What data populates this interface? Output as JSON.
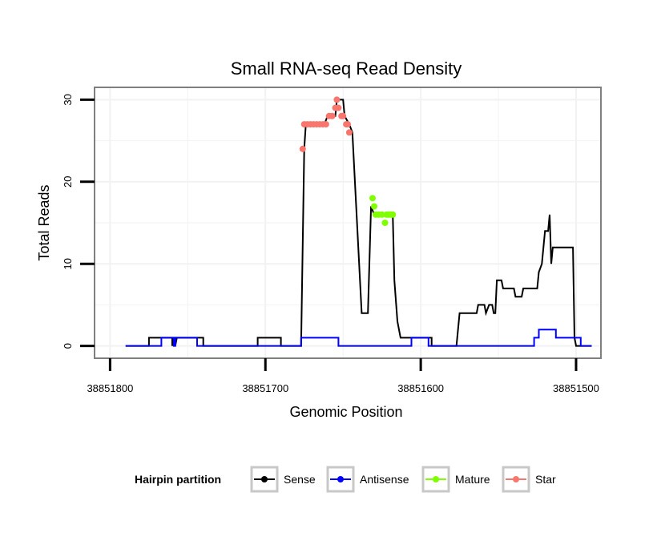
{
  "chart_data": {
    "type": "line",
    "title": "Small RNA-seq Read Density",
    "xlabel": "Genomic Position",
    "ylabel": "Total Reads",
    "xlim": [
      38851810,
      38851484
    ],
    "ylim": [
      -1.5,
      31.5
    ],
    "x_reversed": true,
    "x_ticks": [
      38851800,
      38851700,
      38851600,
      38851500
    ],
    "x_tick_labels": [
      "38851800",
      "38851700",
      "38851600",
      "38851500"
    ],
    "y_ticks": [
      0,
      10,
      20,
      30
    ],
    "y_tick_labels": [
      "0",
      "10",
      "20",
      "30"
    ],
    "grid": true,
    "legend": {
      "title": "Hairpin partition",
      "placement": "bottom",
      "entries": [
        {
          "label": "Sense",
          "color": "#000000"
        },
        {
          "label": "Antisense",
          "color": "#0000ff"
        },
        {
          "label": "Mature",
          "color": "#7fff00"
        },
        {
          "label": "Star",
          "color": "#f8766d"
        }
      ]
    },
    "series": [
      {
        "name": "Sense",
        "color": "#000000",
        "points": [
          [
            38851790,
            0
          ],
          [
            38851775,
            0
          ],
          [
            38851775,
            1
          ],
          [
            38851760,
            1
          ],
          [
            38851760,
            0
          ],
          [
            38851759,
            1
          ],
          [
            38851758,
            1
          ],
          [
            38851758,
            0
          ],
          [
            38851757,
            1
          ],
          [
            38851740,
            1
          ],
          [
            38851740,
            0
          ],
          [
            38851705,
            0
          ],
          [
            38851705,
            1
          ],
          [
            38851690,
            1
          ],
          [
            38851690,
            0
          ],
          [
            38851677,
            0
          ],
          [
            38851675,
            24
          ],
          [
            38851674,
            27
          ],
          [
            38851662,
            27
          ],
          [
            38851660,
            28
          ],
          [
            38851655,
            28
          ],
          [
            38851654,
            30
          ],
          [
            38851650,
            30
          ],
          [
            38851649,
            28
          ],
          [
            38851646,
            27
          ],
          [
            38851644,
            26
          ],
          [
            38851638,
            4
          ],
          [
            38851634,
            4
          ],
          [
            38851632,
            17
          ],
          [
            38851630,
            16
          ],
          [
            38851618,
            16
          ],
          [
            38851617,
            8
          ],
          [
            38851615,
            3
          ],
          [
            38851613,
            1
          ],
          [
            38851593,
            1
          ],
          [
            38851593,
            0
          ],
          [
            38851577,
            0
          ],
          [
            38851575,
            4
          ],
          [
            38851564,
            4
          ],
          [
            38851563,
            5
          ],
          [
            38851559,
            5
          ],
          [
            38851558,
            4
          ],
          [
            38851556,
            5
          ],
          [
            38851554,
            5
          ],
          [
            38851553,
            4
          ],
          [
            38851552,
            4
          ],
          [
            38851551,
            8
          ],
          [
            38851548,
            8
          ],
          [
            38851547,
            7
          ],
          [
            38851540,
            7
          ],
          [
            38851539,
            6
          ],
          [
            38851535,
            6
          ],
          [
            38851534,
            7
          ],
          [
            38851525,
            7
          ],
          [
            38851524,
            9
          ],
          [
            38851522,
            10
          ],
          [
            38851520,
            14
          ],
          [
            38851518,
            14
          ],
          [
            38851517,
            16
          ],
          [
            38851516,
            10
          ],
          [
            38851515,
            12
          ],
          [
            38851502,
            12
          ],
          [
            38851501,
            1
          ],
          [
            38851500,
            0
          ],
          [
            38851490,
            0
          ]
        ]
      },
      {
        "name": "Antisense",
        "color": "#0000ff",
        "points": [
          [
            38851790,
            0
          ],
          [
            38851767,
            0
          ],
          [
            38851767,
            1
          ],
          [
            38851759,
            1
          ],
          [
            38851759,
            0
          ],
          [
            38851758,
            0
          ],
          [
            38851758,
            1
          ],
          [
            38851744,
            1
          ],
          [
            38851744,
            0
          ],
          [
            38851677,
            0
          ],
          [
            38851677,
            1
          ],
          [
            38851653,
            1
          ],
          [
            38851653,
            0
          ],
          [
            38851606,
            0
          ],
          [
            38851606,
            1
          ],
          [
            38851595,
            1
          ],
          [
            38851595,
            0
          ],
          [
            38851527,
            0
          ],
          [
            38851527,
            1
          ],
          [
            38851524,
            1
          ],
          [
            38851524,
            2
          ],
          [
            38851513,
            2
          ],
          [
            38851513,
            1
          ],
          [
            38851497,
            1
          ],
          [
            38851497,
            0
          ],
          [
            38851490,
            0
          ]
        ]
      },
      {
        "name": "Mature",
        "color": "#7fff00",
        "markers_only": true,
        "points": [
          [
            38851631,
            18
          ],
          [
            38851630,
            17
          ],
          [
            38851629,
            16
          ],
          [
            38851627,
            16
          ],
          [
            38851625,
            16
          ],
          [
            38851623,
            15
          ],
          [
            38851622,
            16
          ],
          [
            38851621,
            16
          ],
          [
            38851620,
            16
          ],
          [
            38851619,
            16
          ],
          [
            38851618,
            16
          ]
        ]
      },
      {
        "name": "Star",
        "color": "#f8766d",
        "markers_only": true,
        "points": [
          [
            38851676,
            24
          ],
          [
            38851675,
            27
          ],
          [
            38851673,
            27
          ],
          [
            38851671,
            27
          ],
          [
            38851669,
            27
          ],
          [
            38851667,
            27
          ],
          [
            38851665,
            27
          ],
          [
            38851663,
            27
          ],
          [
            38851661,
            27
          ],
          [
            38851659,
            28
          ],
          [
            38851657,
            28
          ],
          [
            38851655,
            29
          ],
          [
            38851654,
            30
          ],
          [
            38851653,
            29
          ],
          [
            38851651,
            28
          ],
          [
            38851650,
            28
          ],
          [
            38851648,
            27
          ],
          [
            38851647,
            27
          ],
          [
            38851646,
            26
          ]
        ]
      }
    ]
  }
}
